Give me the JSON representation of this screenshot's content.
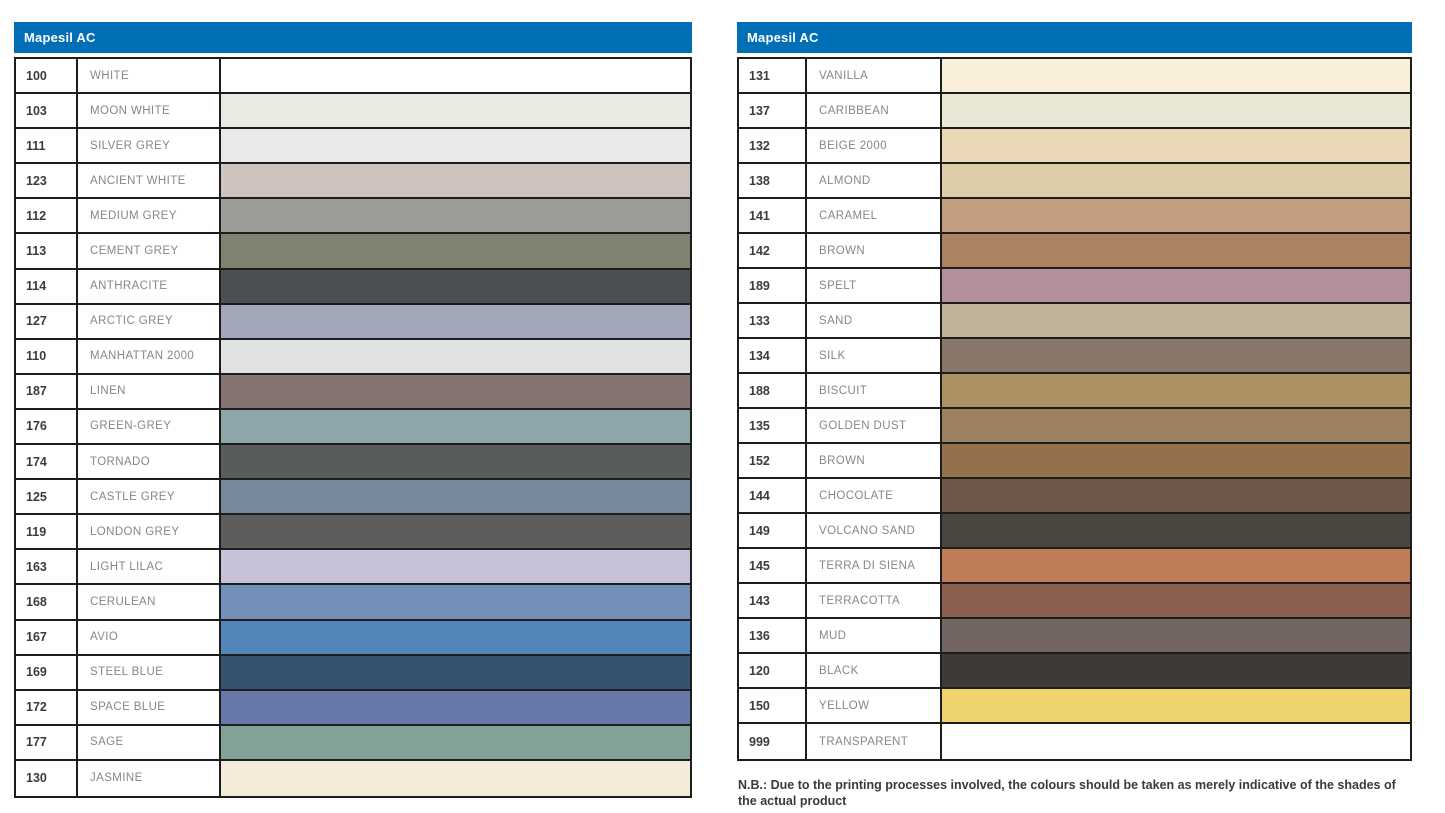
{
  "page": {
    "background": "#ffffff"
  },
  "note": "N.B.: Due to the printing processes involved, the colours should be taken as merely indicative of the shades of the actual product",
  "tables": [
    {
      "title": "Mapesil AC",
      "header_color": "#006FB6",
      "rows": [
        {
          "code": "100",
          "name": "WHITE",
          "color": "#FFFFFF"
        },
        {
          "code": "103",
          "name": "MOON WHITE",
          "color": "#E9EBE3"
        },
        {
          "code": "111",
          "name": "SILVER GREY",
          "color": "#E9E9E9"
        },
        {
          "code": "123",
          "name": "ANCIENT WHITE",
          "color": "#CFC3BD"
        },
        {
          "code": "112",
          "name": "MEDIUM GREY",
          "color": "#9D9D97"
        },
        {
          "code": "113",
          "name": "CEMENT GREY",
          "color": "#828272"
        },
        {
          "code": "114",
          "name": "ANTHRACITE",
          "color": "#4A5053"
        },
        {
          "code": "127",
          "name": "ARCTIC GREY",
          "color": "#A1A6B8"
        },
        {
          "code": "110",
          "name": "MANHATTAN 2000",
          "color": "#E0E1E1"
        },
        {
          "code": "187",
          "name": "LINEN",
          "color": "#857471"
        },
        {
          "code": "176",
          "name": "GREEN-GREY",
          "color": "#8EA5A9"
        },
        {
          "code": "174",
          "name": "TORNADO",
          "color": "#575D59"
        },
        {
          "code": "125",
          "name": "CASTLE GREY",
          "color": "#76889B"
        },
        {
          "code": "119",
          "name": "LONDON GREY",
          "color": "#5F5C5C"
        },
        {
          "code": "163",
          "name": "LIGHT LILAC",
          "color": "#C7C2D7"
        },
        {
          "code": "168",
          "name": "CERULEAN",
          "color": "#7390B8"
        },
        {
          "code": "167",
          "name": "AVIO",
          "color": "#5386B8"
        },
        {
          "code": "169",
          "name": "STEEL BLUE",
          "color": "#35516F"
        },
        {
          "code": "172",
          "name": "SPACE BLUE",
          "color": "#6679A8"
        },
        {
          "code": "177",
          "name": "SAGE",
          "color": "#84A199"
        },
        {
          "code": "130",
          "name": "JASMINE",
          "color": "#F3EAD7"
        }
      ]
    },
    {
      "title": "Mapesil AC",
      "header_color": "#006FB6",
      "rows": [
        {
          "code": "131",
          "name": "VANILLA",
          "color": "#FAF0DA"
        },
        {
          "code": "137",
          "name": "CARIBBEAN",
          "color": "#E9E8D4"
        },
        {
          "code": "132",
          "name": "BEIGE 2000",
          "color": "#E9D7B6"
        },
        {
          "code": "138",
          "name": "ALMOND",
          "color": "#DCCCA8"
        },
        {
          "code": "141",
          "name": "CARAMEL",
          "color": "#C49D7E"
        },
        {
          "code": "142",
          "name": "BROWN",
          "color": "#AD8260"
        },
        {
          "code": "189",
          "name": "SPELT",
          "color": "#B2919D"
        },
        {
          "code": "133",
          "name": "SAND",
          "color": "#BFB39A"
        },
        {
          "code": "134",
          "name": "SILK",
          "color": "#897869"
        },
        {
          "code": "188",
          "name": "BISCUIT",
          "color": "#AC9163"
        },
        {
          "code": "135",
          "name": "GOLDEN DUST",
          "color": "#9C8161"
        },
        {
          "code": "152",
          "name": "BROWN",
          "color": "#94714C"
        },
        {
          "code": "144",
          "name": "CHOCOLATE",
          "color": "#6D5749"
        },
        {
          "code": "149",
          "name": "VOLCANO SAND",
          "color": "#4B4540"
        },
        {
          "code": "145",
          "name": "TERRA DI SIENA",
          "color": "#C07B59"
        },
        {
          "code": "143",
          "name": "TERRACOTTA",
          "color": "#8C5F51"
        },
        {
          "code": "136",
          "name": "MUD",
          "color": "#73655F"
        },
        {
          "code": "120",
          "name": "BLACK",
          "color": "#3E3A35"
        },
        {
          "code": "150",
          "name": "YELLOW",
          "color": "#EFD36D"
        },
        {
          "code": "999",
          "name": "TRANSPARENT",
          "color": "#FFFFFF"
        }
      ]
    }
  ]
}
